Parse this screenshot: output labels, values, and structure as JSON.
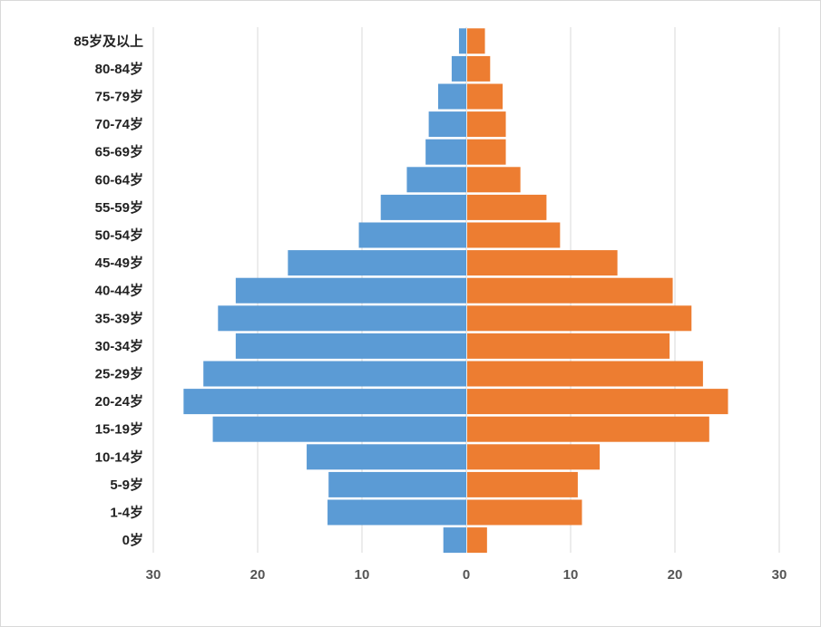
{
  "chart_data": {
    "type": "bar",
    "orientation": "horizontal-diverging",
    "categories": [
      "85岁及以上",
      "80-84岁",
      "75-79岁",
      "70-74岁",
      "65-69岁",
      "60-64岁",
      "55-59岁",
      "50-54岁",
      "45-49岁",
      "40-44岁",
      "35-39岁",
      "30-34岁",
      "25-29岁",
      "20-24岁",
      "15-19岁",
      "10-14岁",
      "5-9岁",
      "1-4岁",
      "0岁"
    ],
    "series": [
      {
        "color": "#5b9bd5",
        "side": "left",
        "values": [
          0.7,
          1.4,
          2.7,
          3.6,
          3.9,
          5.7,
          8.2,
          10.3,
          17.1,
          22.1,
          23.8,
          22.1,
          25.2,
          27.1,
          24.3,
          15.3,
          13.2,
          13.3,
          2.2
        ]
      },
      {
        "color": "#ed7d31",
        "side": "right",
        "values": [
          1.7,
          2.2,
          3.4,
          3.7,
          3.7,
          5.1,
          7.6,
          8.9,
          14.4,
          19.7,
          21.5,
          19.4,
          22.6,
          25.0,
          23.2,
          12.7,
          10.6,
          11.0,
          1.9
        ]
      }
    ],
    "x_ticks": [
      "30",
      "20",
      "10",
      "0",
      "10",
      "20",
      "30"
    ],
    "xlim": [
      -30,
      30
    ],
    "grid": true,
    "gridline_color": "#d9d9d9"
  }
}
